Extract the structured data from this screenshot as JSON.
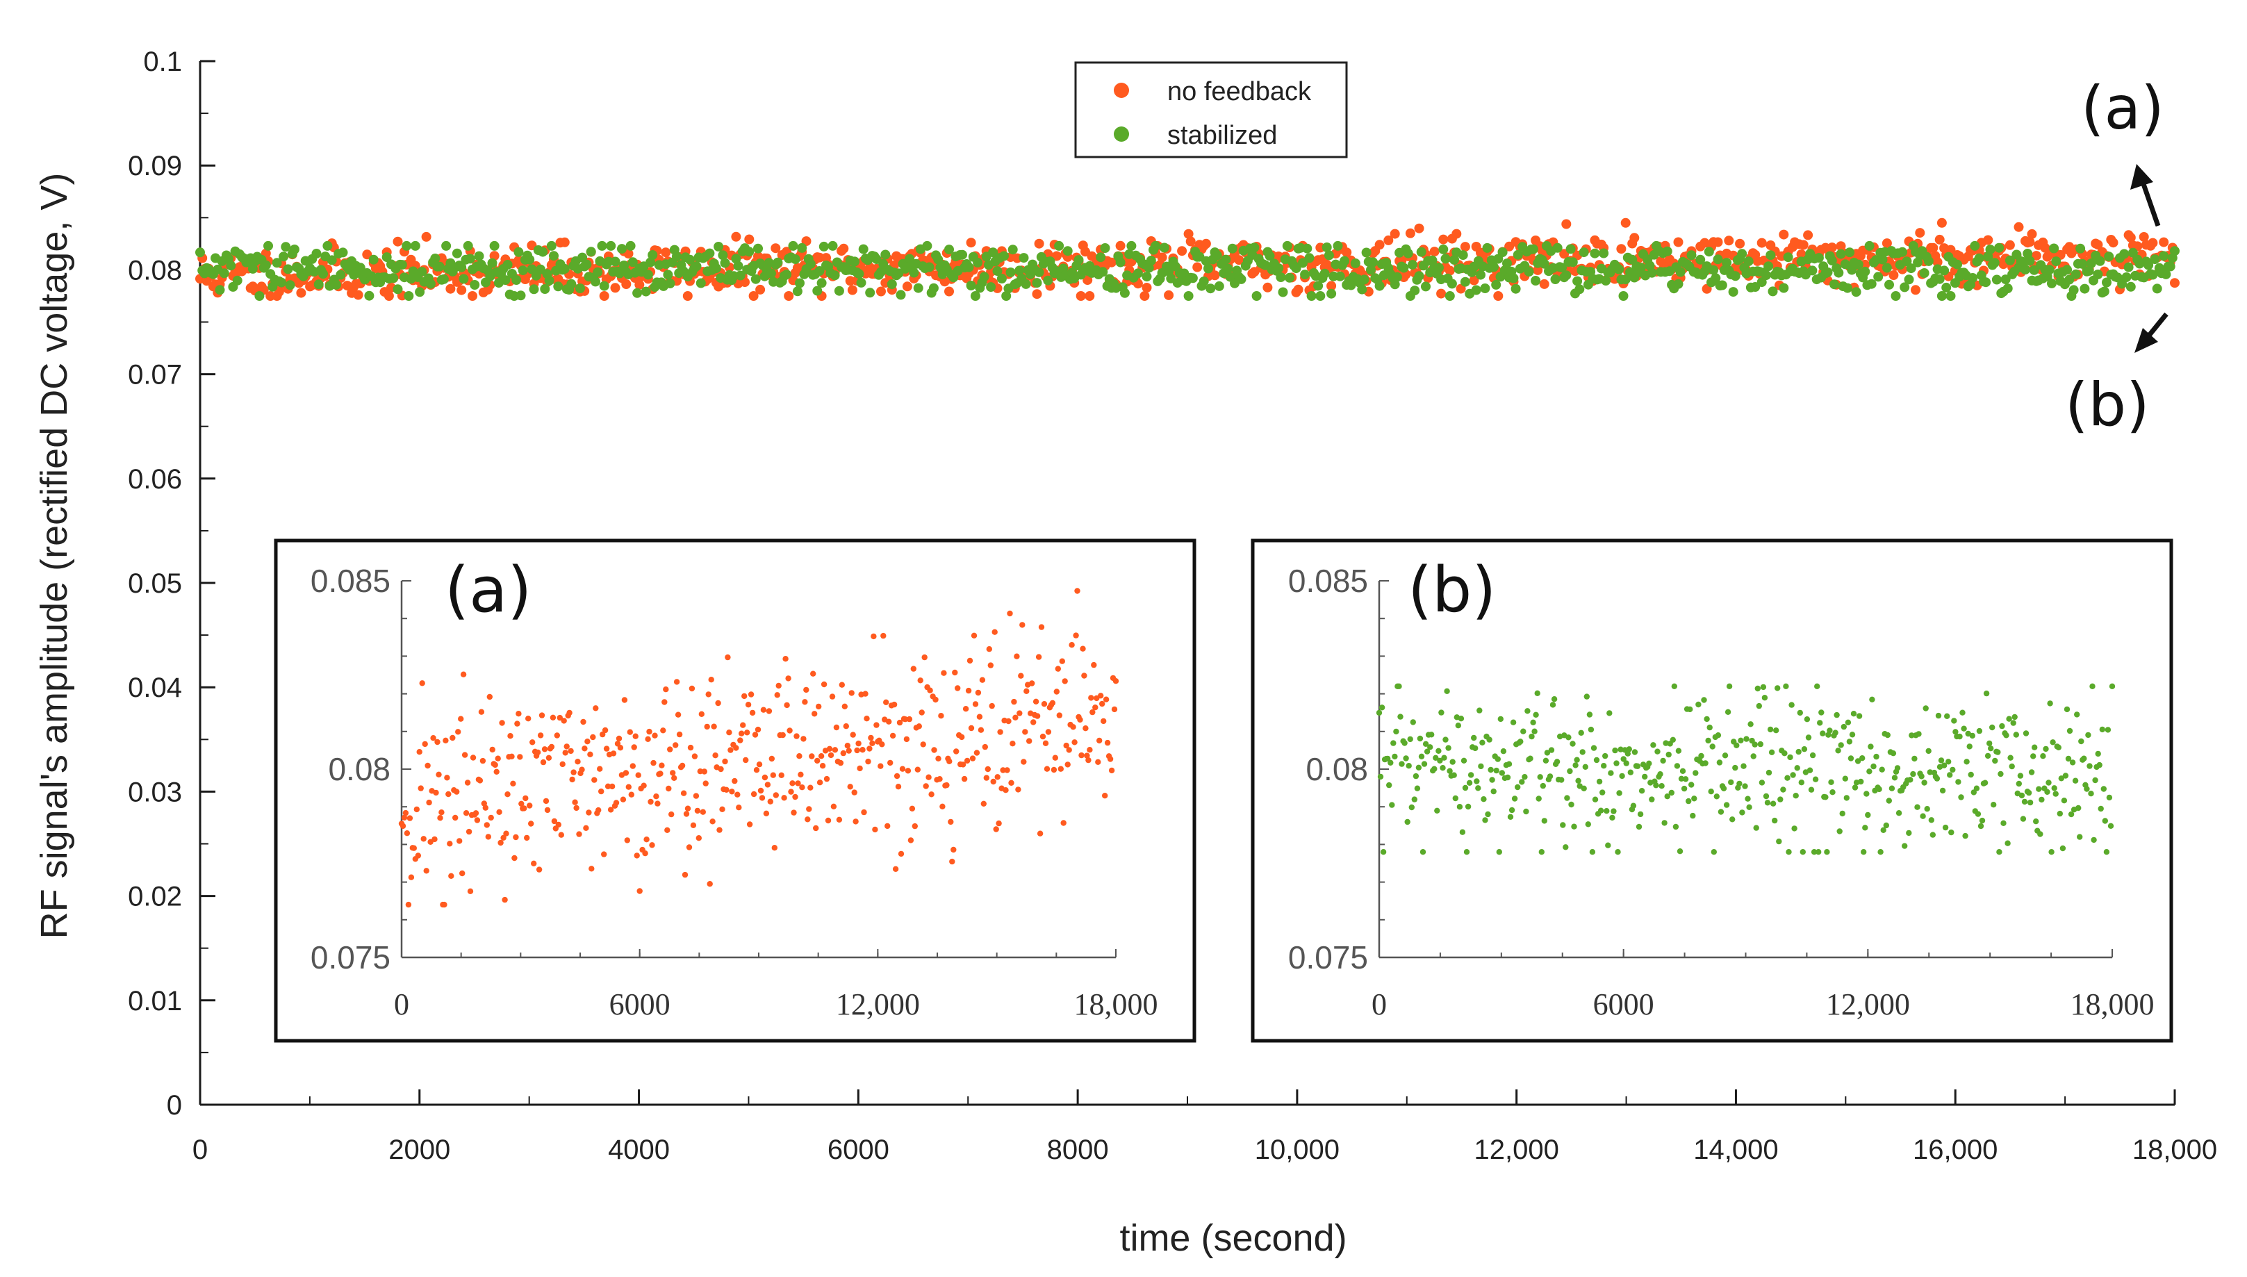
{
  "colors": {
    "no_feedback": "#ff5a1f",
    "stabilized": "#5aaa2a",
    "axis": "#1a1a1a",
    "inset_axis": "#555555"
  },
  "chart_data": [
    {
      "type": "scatter",
      "title": "",
      "xlabel": "time (second)",
      "ylabel": "RF signal's amplitude (rectified DC voltage, V)",
      "xlim": [
        0,
        18000
      ],
      "ylim": [
        0,
        0.1
      ],
      "xticks": [
        0,
        2000,
        4000,
        6000,
        8000,
        10000,
        12000,
        14000,
        16000,
        18000
      ],
      "xtick_labels": [
        "0",
        "2000",
        "4000",
        "6000",
        "8000",
        "10,000",
        "12,000",
        "14,000",
        "16,000",
        "18,000"
      ],
      "yticks": [
        0,
        0.01,
        0.02,
        0.03,
        0.04,
        0.05,
        0.06,
        0.07,
        0.08,
        0.09,
        0.1
      ],
      "ytick_labels": [
        "0",
        "0.01",
        "0.02",
        "0.03",
        "0.04",
        "0.05",
        "0.06",
        "0.07",
        "0.08",
        "0.09",
        "0.1"
      ],
      "legend": {
        "position": "top-center",
        "entries": [
          "no feedback",
          "stabilized"
        ]
      },
      "annotations": [
        "(a)",
        "(b)"
      ],
      "series": [
        {
          "name": "no feedback",
          "points": 900,
          "x_range": [
            0,
            18000
          ],
          "y_mean_start": 0.0795,
          "y_mean_end": 0.0815,
          "y_spread": 0.0018
        },
        {
          "name": "stabilized",
          "points": 900,
          "x_range": [
            0,
            18000
          ],
          "y_mean": 0.08,
          "y_spread": 0.0017
        }
      ]
    },
    {
      "type": "scatter",
      "panel": "(a)",
      "xlim": [
        0,
        18000
      ],
      "ylim": [
        0.075,
        0.085
      ],
      "xticks": [
        0,
        6000,
        12000,
        18000
      ],
      "xtick_labels": [
        "0",
        "6000",
        "12,000",
        "18,000"
      ],
      "yticks": [
        0.075,
        0.08,
        0.085
      ],
      "ytick_labels": [
        "0.075",
        "0.08",
        "0.085"
      ],
      "series": [
        {
          "name": "no feedback",
          "points": 520,
          "x_range": [
            0,
            18000
          ],
          "y_mean_start": 0.079,
          "y_mean_end": 0.0815,
          "y_spread": 0.002,
          "y_min": 0.0764,
          "y_max": 0.0848
        }
      ]
    },
    {
      "type": "scatter",
      "panel": "(b)",
      "xlim": [
        0,
        18000
      ],
      "ylim": [
        0.075,
        0.085
      ],
      "xticks": [
        0,
        6000,
        12000,
        18000
      ],
      "xtick_labels": [
        "0",
        "6000",
        "12,000",
        "18,000"
      ],
      "yticks": [
        0.075,
        0.08,
        0.085
      ],
      "ytick_labels": [
        "0.075",
        "0.08",
        "0.085"
      ],
      "series": [
        {
          "name": "stabilized",
          "points": 520,
          "x_range": [
            0,
            18000
          ],
          "y_mean": 0.0799,
          "y_spread": 0.0016,
          "y_min": 0.0778,
          "y_max": 0.0822
        }
      ]
    }
  ]
}
